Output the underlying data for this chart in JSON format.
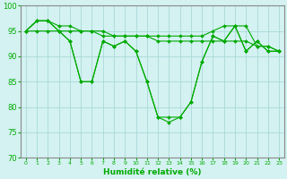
{
  "title": "",
  "xlabel": "Humidité relative (%)",
  "ylabel": "",
  "background_color": "#d4f2f2",
  "grid_color": "#aad8d8",
  "line_color": "#00aa00",
  "xlim": [
    -0.5,
    23.5
  ],
  "ylim": [
    70,
    100
  ],
  "yticks": [
    70,
    75,
    80,
    85,
    90,
    95,
    100
  ],
  "xticks": [
    0,
    1,
    2,
    3,
    4,
    5,
    6,
    7,
    8,
    9,
    10,
    11,
    12,
    13,
    14,
    15,
    16,
    17,
    18,
    19,
    20,
    21,
    22,
    23
  ],
  "series": [
    [
      95,
      97,
      97,
      96,
      96,
      95,
      95,
      94,
      94,
      94,
      94,
      94,
      94,
      94,
      94,
      94,
      94,
      95,
      96,
      96,
      96,
      92,
      92,
      91
    ],
    [
      95,
      97,
      97,
      95,
      93,
      85,
      85,
      93,
      92,
      93,
      91,
      85,
      78,
      78,
      78,
      81,
      89,
      94,
      93,
      96,
      91,
      93,
      91,
      91
    ],
    [
      95,
      97,
      97,
      95,
      93,
      85,
      85,
      93,
      92,
      93,
      91,
      85,
      78,
      77,
      78,
      81,
      89,
      94,
      93,
      96,
      91,
      93,
      91,
      91
    ],
    [
      95,
      95,
      95,
      95,
      95,
      95,
      95,
      95,
      94,
      94,
      94,
      94,
      93,
      93,
      93,
      93,
      93,
      93,
      93,
      93,
      93,
      92,
      92,
      91
    ]
  ]
}
